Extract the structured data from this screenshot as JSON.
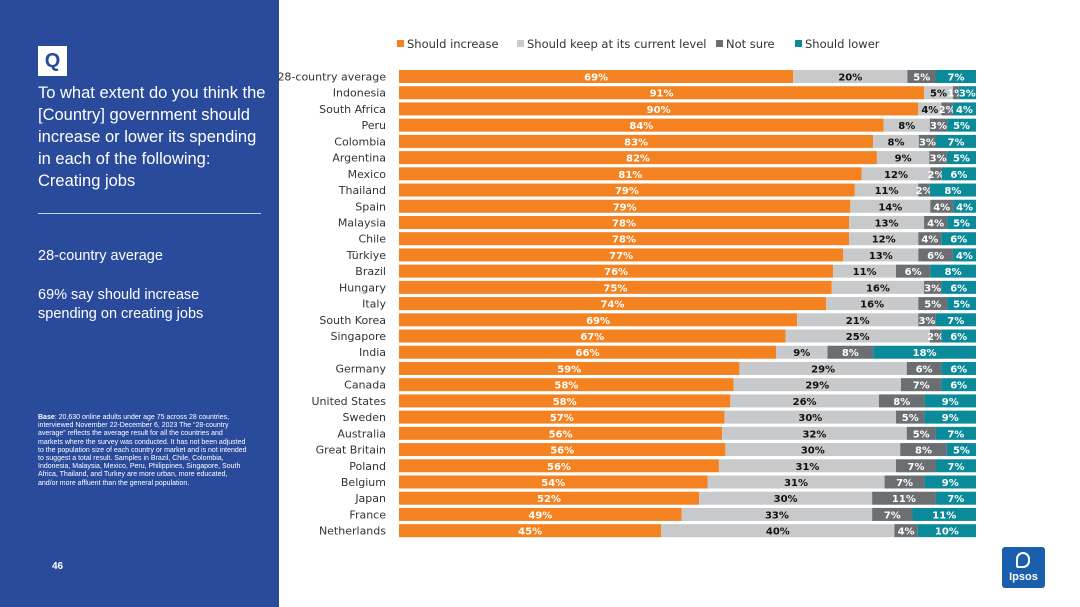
{
  "sidebar": {
    "badge": "Q",
    "question": "To what extent do you think the [Country] government should increase or lower its spending in each of the following: Creating jobs",
    "summary_title": "28-country average",
    "summary_text": "69% say should increase spending on creating jobs",
    "base_label": "Base",
    "base_text": ": 20,630 online adults under age 75 across 28 countries, interviewed November 22-December 6, 2023 The “28-country average” reflects the average result for all the countries and markets where the survey was conducted. It has not been adjusted to the population size of each country or market and is not intended to suggest a total result. Samples in Brazil, Chile, Colombia, Indonesia, Malaysia, Mexico, Peru, Philippines, Singapore, South Africa, Thailand, and Turkey are more urban, more educated, and/or more affluent than the general population.",
    "page_number": "46"
  },
  "logo": {
    "text": "Ipsos",
    "color": "#1a5fae"
  },
  "chart_data": {
    "type": "bar",
    "orientation": "horizontal",
    "stacked": true,
    "percent_scale": true,
    "legend_position": "top",
    "grid": false,
    "categories": [
      "28-country average",
      "Indonesia",
      "South Africa",
      "Peru",
      "Colombia",
      "Argentina",
      "Mexico",
      "Thailand",
      "Spain",
      "Malaysia",
      "Chile",
      "Türkiye",
      "Brazil",
      "Hungary",
      "Italy",
      "South Korea",
      "Singapore",
      "India",
      "Germany",
      "Canada",
      "United States",
      "Sweden",
      "Australia",
      "Great Britain",
      "Poland",
      "Belgium",
      "Japan",
      "France",
      "Netherlands"
    ],
    "series": [
      {
        "name": "Should increase",
        "color": "#f58220",
        "label_color": "#ffffff",
        "values": [
          69,
          91,
          90,
          84,
          83,
          82,
          81,
          79,
          79,
          78,
          78,
          77,
          76,
          75,
          74,
          69,
          67,
          66,
          59,
          58,
          58,
          57,
          56,
          56,
          56,
          54,
          52,
          49,
          45
        ]
      },
      {
        "name": "Should keep at its current level",
        "color": "#c8c9cb",
        "label_color": "#111111",
        "values": [
          20,
          5,
          4,
          8,
          8,
          9,
          12,
          11,
          14,
          13,
          12,
          13,
          11,
          16,
          16,
          21,
          25,
          9,
          29,
          29,
          26,
          30,
          32,
          30,
          31,
          31,
          30,
          33,
          40
        ]
      },
      {
        "name": "Not sure",
        "color": "#6b6e72",
        "label_color": "#ffffff",
        "values": [
          5,
          1,
          2,
          3,
          3,
          3,
          2,
          2,
          4,
          4,
          4,
          6,
          6,
          3,
          5,
          3,
          2,
          8,
          6,
          7,
          8,
          5,
          5,
          8,
          7,
          7,
          11,
          7,
          4
        ]
      },
      {
        "name": "Should lower",
        "color": "#0b8a9a",
        "label_color": "#ffffff",
        "values": [
          7,
          3,
          4,
          5,
          7,
          5,
          6,
          8,
          4,
          5,
          6,
          4,
          8,
          6,
          5,
          7,
          6,
          18,
          6,
          6,
          9,
          9,
          7,
          5,
          7,
          9,
          7,
          11,
          10
        ]
      }
    ],
    "value_suffix": "%"
  }
}
